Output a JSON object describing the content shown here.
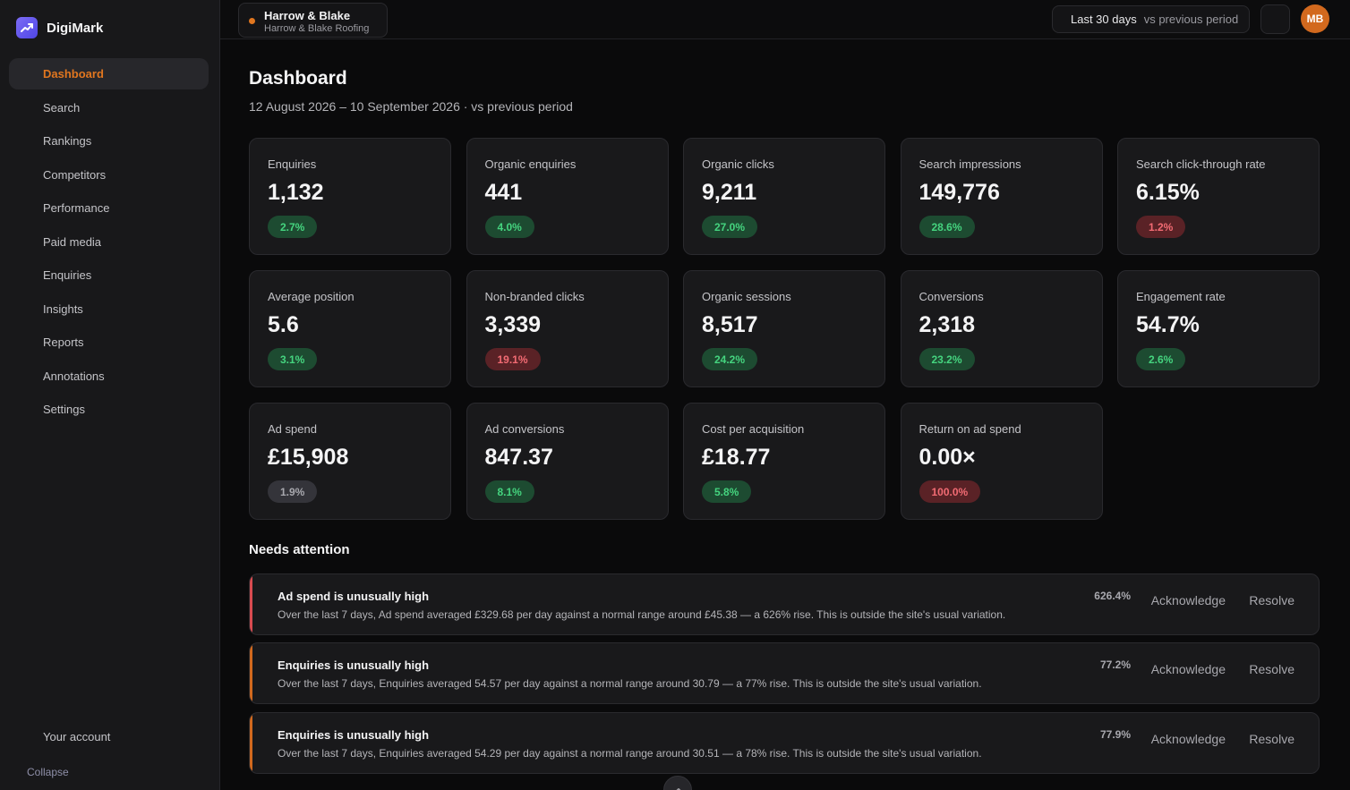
{
  "brand": {
    "name": "DigiMark"
  },
  "sidebar": {
    "items": [
      {
        "label": "Dashboard",
        "active": true
      },
      {
        "label": "Search"
      },
      {
        "label": "Rankings"
      },
      {
        "label": "Competitors"
      },
      {
        "label": "Performance"
      },
      {
        "label": "Paid media"
      },
      {
        "label": "Enquiries"
      },
      {
        "label": "Insights"
      },
      {
        "label": "Reports"
      },
      {
        "label": "Annotations"
      },
      {
        "label": "Settings"
      }
    ],
    "account": "Your account",
    "collapse": "Collapse"
  },
  "topbar": {
    "client_name": "Harrow & Blake",
    "client_sub": "Harrow & Blake Roofing",
    "range_main": "Last 30 days",
    "range_sub": "vs previous period",
    "avatar": "MB"
  },
  "page": {
    "title": "Dashboard",
    "subtitle": "12 August 2026 – 10 September 2026 · vs previous period"
  },
  "kpis": [
    {
      "label": "Enquiries",
      "value": "1,132",
      "change": "2.7%",
      "trend": "up"
    },
    {
      "label": "Organic enquiries",
      "value": "441",
      "change": "4.0%",
      "trend": "up"
    },
    {
      "label": "Organic clicks",
      "value": "9,211",
      "change": "27.0%",
      "trend": "up"
    },
    {
      "label": "Search impressions",
      "value": "149,776",
      "change": "28.6%",
      "trend": "up"
    },
    {
      "label": "Search click-through rate",
      "value": "6.15%",
      "change": "1.2%",
      "trend": "down"
    },
    {
      "label": "Average position",
      "value": "5.6",
      "change": "3.1%",
      "trend": "up"
    },
    {
      "label": "Non-branded clicks",
      "value": "3,339",
      "change": "19.1%",
      "trend": "down"
    },
    {
      "label": "Organic sessions",
      "value": "8,517",
      "change": "24.2%",
      "trend": "up"
    },
    {
      "label": "Conversions",
      "value": "2,318",
      "change": "23.2%",
      "trend": "up"
    },
    {
      "label": "Engagement rate",
      "value": "54.7%",
      "change": "2.6%",
      "trend": "up"
    },
    {
      "label": "Ad spend",
      "value": "£15,908",
      "change": "1.9%",
      "trend": "flat"
    },
    {
      "label": "Ad conversions",
      "value": "847.37",
      "change": "8.1%",
      "trend": "up"
    },
    {
      "label": "Cost per acquisition",
      "value": "£18.77",
      "change": "5.8%",
      "trend": "up"
    },
    {
      "label": "Return on ad spend",
      "value": "0.00×",
      "change": "100.0%",
      "trend": "down"
    }
  ],
  "attention": {
    "title": "Needs attention",
    "alerts": [
      {
        "title": "Ad spend is unusually high",
        "description": "Over the last 7 days, Ad spend averaged £329.68 per day against a normal range around £45.38 — a 626% rise. This is outside the site's usual variation.",
        "pct": "626.4%",
        "severity": "high",
        "acknowledge": "Acknowledge",
        "resolve": "Resolve"
      },
      {
        "title": "Enquiries is unusually high",
        "description": "Over the last 7 days, Enquiries averaged 54.57 per day against a normal range around 30.79 — a 77% rise. This is outside the site's usual variation.",
        "pct": "77.2%",
        "severity": "medium",
        "acknowledge": "Acknowledge",
        "resolve": "Resolve"
      },
      {
        "title": "Enquiries is unusually high",
        "description": "Over the last 7 days, Enquiries averaged 54.29 per day against a normal range around 30.51 — a 78% rise. This is outside the site's usual variation.",
        "pct": "77.9%",
        "severity": "medium",
        "acknowledge": "Acknowledge",
        "resolve": "Resolve"
      }
    ]
  },
  "colors": {
    "accent": "#e0761f",
    "high": "#d94b50",
    "medium": "#d2691e",
    "up": "#45d47f",
    "down": "#f26b73"
  }
}
